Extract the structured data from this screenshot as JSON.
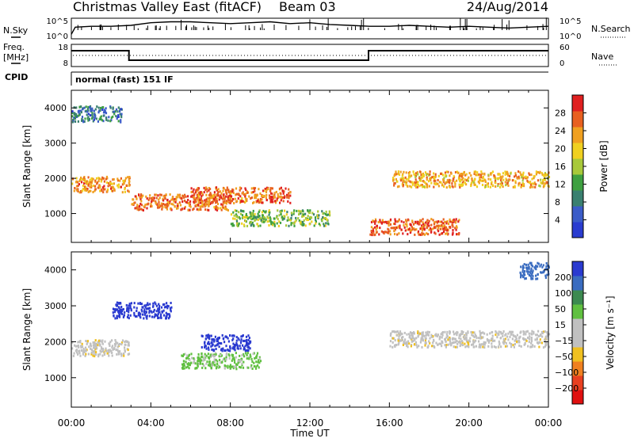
{
  "header": {
    "title": "Christmas Valley East (fitACF)",
    "beam": "Beam 03",
    "date": "24/Aug/2014"
  },
  "left_labels": {
    "nsky": "N.Sky",
    "freq_line1": "Freq.",
    "freq_line2": "[MHz]",
    "cpid": "CPID"
  },
  "right_labels": {
    "nsearch": "N.Search",
    "nave": "Nave"
  },
  "cpid_text": "normal (fast) 151 IF",
  "x_axis": {
    "label": "Time UT",
    "ticks": [
      "00:00",
      "04:00",
      "08:00",
      "12:00",
      "16:00",
      "20:00",
      "00:00"
    ]
  },
  "colorbars": {
    "power": {
      "label": "Power [dB]",
      "ticks": [
        "4",
        "8",
        "12",
        "16",
        "20",
        "24",
        "28"
      ],
      "colors": [
        "#2a3cd0",
        "#3b5cc8",
        "#3a8070",
        "#3ea040",
        "#a8c93a",
        "#f0d020",
        "#f0a020",
        "#e86020",
        "#e02020"
      ]
    },
    "velocity": {
      "label": "Velocity [m s⁻¹]",
      "ticks": [
        "200",
        "100",
        "50",
        "15",
        "−15",
        "−50",
        "−100",
        "−200"
      ],
      "colors": [
        "#2a3ad0",
        "#3a6cc0",
        "#3c8a50",
        "#60c040",
        "#c0c0c0",
        "#c0c0c0",
        "#f0c020",
        "#f08020",
        "#e84020",
        "#e01010"
      ]
    }
  },
  "chart_data": [
    {
      "type": "line",
      "panel": "noise",
      "x_range": [
        0,
        24
      ],
      "left_ticks": [
        "10^5",
        "10^0"
      ],
      "right_ticks": [
        "10^5",
        "10^0"
      ],
      "series": [
        {
          "name": "N.Sky",
          "x": [
            0,
            0.2,
            1,
            2,
            3,
            4,
            5,
            6,
            7,
            8,
            9,
            10,
            11,
            12,
            13,
            14,
            15,
            16,
            17,
            18,
            19,
            20,
            21,
            22,
            23,
            24
          ],
          "y": [
            0.5,
            1.3,
            1.4,
            1.4,
            1.5,
            1.8,
            1.9,
            1.9,
            1.8,
            1.7,
            1.8,
            1.9,
            1.7,
            1.8,
            1.6,
            1.5,
            1.4,
            1.4,
            1.5,
            1.4,
            1.3,
            1.4,
            1.3,
            1.2,
            1.3,
            1.4
          ]
        }
      ]
    },
    {
      "type": "line",
      "panel": "frequency",
      "x_range": [
        0,
        24
      ],
      "left_ticks": [
        "18",
        "8"
      ],
      "right_ticks": [
        "60",
        "0"
      ],
      "series": [
        {
          "name": "Freq.",
          "x": [
            0,
            2.9,
            2.9,
            14.95,
            14.95,
            24
          ],
          "y": [
            16,
            16,
            10,
            10,
            16,
            16
          ]
        }
      ]
    },
    {
      "type": "heatmap",
      "panel": "power",
      "x_range": [
        0,
        24
      ],
      "y_range": [
        180,
        4500
      ],
      "ylabel": "Slant Range [km]",
      "yticks": [
        1000,
        2000,
        3000,
        4000
      ],
      "features": [
        {
          "t_start": 0.0,
          "t_end": 2.9,
          "range": 1850,
          "power": 24
        },
        {
          "t_start": 3.0,
          "t_end": 8.0,
          "range": 1350,
          "power": 26
        },
        {
          "t_start": 6.0,
          "t_end": 11.0,
          "range": 1550,
          "power": 26
        },
        {
          "t_start": 8.0,
          "t_end": 13.0,
          "range": 900,
          "power": 14
        },
        {
          "t_start": 15.0,
          "t_end": 19.5,
          "range": 650,
          "power": 27
        },
        {
          "t_start": 16.0,
          "t_end": 24.0,
          "range": 2000,
          "power": 22
        },
        {
          "t_start": 0.0,
          "t_end": 2.5,
          "range": 3850,
          "power": 8
        }
      ]
    },
    {
      "type": "heatmap",
      "panel": "velocity",
      "x_range": [
        0,
        24
      ],
      "y_range": [
        180,
        4500
      ],
      "ylabel": "Slant Range [km]",
      "yticks": [
        1000,
        2000,
        3000,
        4000
      ],
      "features": [
        {
          "t_start": 0.0,
          "t_end": 2.9,
          "range": 1850,
          "velocity": 0
        },
        {
          "t_start": 2.0,
          "t_end": 5.0,
          "range": 2900,
          "velocity": 200
        },
        {
          "t_start": 6.5,
          "t_end": 9.0,
          "range": 2000,
          "velocity": 200
        },
        {
          "t_start": 5.5,
          "t_end": 9.5,
          "range": 1500,
          "velocity": 40
        },
        {
          "t_start": 16.0,
          "t_end": 24.0,
          "range": 2100,
          "velocity": 0
        },
        {
          "t_start": 22.5,
          "t_end": 24.0,
          "range": 4000,
          "velocity": 100
        }
      ]
    }
  ]
}
